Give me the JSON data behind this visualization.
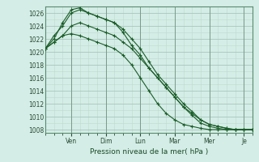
{
  "xlabel": "Pression niveau de la mer( hPa )",
  "bg_color": "#d4ede6",
  "grid_color_major": "#a0bfb5",
  "grid_color_minor": "#c0d8d0",
  "line_color": "#1a5c28",
  "ylim": [
    1007.5,
    1027.0
  ],
  "yticks": [
    1008,
    1010,
    1012,
    1014,
    1016,
    1018,
    1020,
    1022,
    1024,
    1026
  ],
  "day_labels": [
    "Ven",
    "Dim",
    "Lun",
    "Mar",
    "Mer",
    "Je"
  ],
  "day_positions": [
    3,
    7,
    11,
    15,
    19,
    23
  ],
  "n_points": 25,
  "series": [
    [
      1020.5,
      1021.5,
      1022.5,
      1024.0,
      1024.5,
      1024.0,
      1023.5,
      1023.0,
      1022.5,
      1021.5,
      1020.5,
      1019.0,
      1017.5,
      1016.0,
      1014.5,
      1013.0,
      1011.5,
      1010.5,
      1009.5,
      1008.8,
      1008.5,
      1008.2,
      1008.0,
      1008.0,
      1008.0
    ],
    [
      1020.5,
      1022.5,
      1024.0,
      1026.0,
      1026.5,
      1026.0,
      1025.5,
      1025.0,
      1024.5,
      1023.5,
      1022.0,
      1020.5,
      1018.5,
      1016.5,
      1015.0,
      1013.5,
      1012.0,
      1010.8,
      1009.5,
      1008.8,
      1008.5,
      1008.2,
      1008.0,
      1008.0,
      1008.0
    ],
    [
      1020.5,
      1022.0,
      1024.5,
      1026.5,
      1026.8,
      1026.0,
      1025.5,
      1025.0,
      1024.5,
      1023.0,
      1021.0,
      1019.5,
      1017.5,
      1016.0,
      1014.5,
      1013.0,
      1011.5,
      1010.2,
      1009.0,
      1008.5,
      1008.2,
      1008.0,
      1008.0,
      1008.0,
      1008.0
    ],
    [
      1020.5,
      1021.5,
      1022.5,
      1022.8,
      1022.5,
      1022.0,
      1021.5,
      1021.0,
      1020.5,
      1019.5,
      1018.0,
      1016.0,
      1014.0,
      1012.0,
      1010.5,
      1009.5,
      1008.8,
      1008.5,
      1008.2,
      1008.0,
      1008.0,
      1008.0,
      1008.0,
      1008.0,
      1008.0
    ]
  ]
}
